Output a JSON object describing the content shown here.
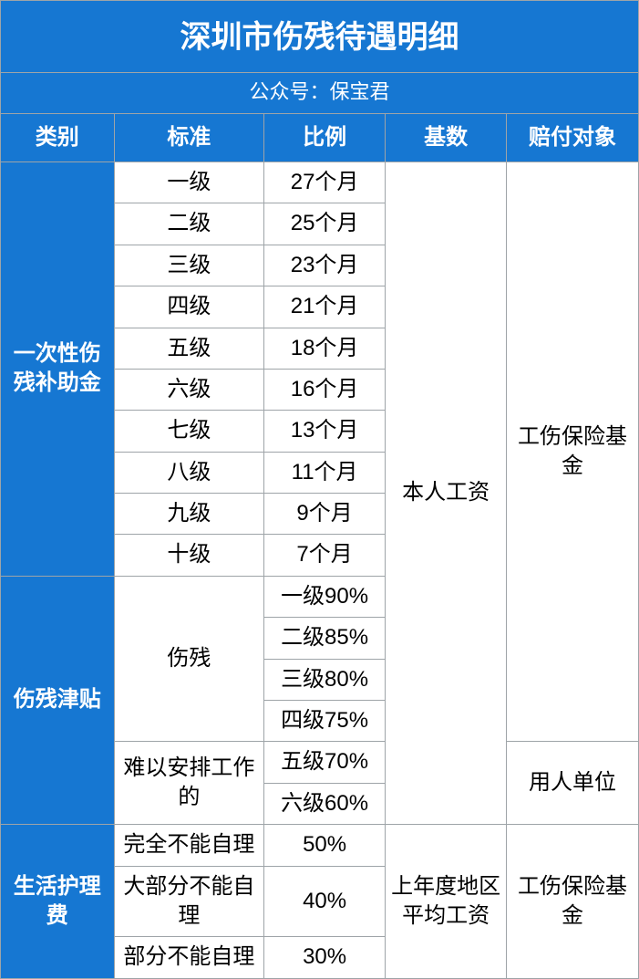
{
  "colors": {
    "header_bg": "#1677d2",
    "header_fg": "#ffffff",
    "cell_bg": "#ffffff",
    "cell_fg": "#000000",
    "border": "#9ea4a8"
  },
  "font": {
    "title_size_pt": 26,
    "subtitle_size_pt": 17,
    "header_size_pt": 18,
    "body_size_pt": 18
  },
  "title": "深圳市伤残待遇明细",
  "subtitle": "公众号：保宝君",
  "columns": [
    "类别",
    "标准",
    "比例",
    "基数",
    "赔付对象"
  ],
  "column_widths_pct": [
    17.8,
    23.5,
    19.0,
    19.0,
    20.7
  ],
  "sections": [
    {
      "category": "一次性伤残补助金",
      "base": "本人工资",
      "payer": "工伤保险基金",
      "rows": [
        {
          "standard": "一级",
          "ratio": "27个月"
        },
        {
          "standard": "二级",
          "ratio": "25个月"
        },
        {
          "standard": "三级",
          "ratio": "23个月"
        },
        {
          "standard": "四级",
          "ratio": "21个月"
        },
        {
          "standard": "五级",
          "ratio": "18个月"
        },
        {
          "standard": "六级",
          "ratio": "16个月"
        },
        {
          "standard": "七级",
          "ratio": "13个月"
        },
        {
          "standard": "八级",
          "ratio": "11个月"
        },
        {
          "standard": "九级",
          "ratio": "9个月"
        },
        {
          "standard": "十级",
          "ratio": "7个月"
        }
      ]
    },
    {
      "category": "伤残津贴",
      "groups": [
        {
          "standard": "伤残",
          "ratios": [
            "一级90%",
            "二级85%",
            "三级80%",
            "四级75%"
          ],
          "payer": "工伤保险基金"
        },
        {
          "standard": "难以安排工作的",
          "ratios": [
            "五级70%",
            "六级60%"
          ],
          "payer": "用人单位"
        }
      ]
    },
    {
      "category": "生活护理费",
      "base": "上年度地区平均工资",
      "payer": "工伤保险基金",
      "rows": [
        {
          "standard": "完全不能自理",
          "ratio": "50%"
        },
        {
          "standard": "大部分不能自理",
          "ratio": "40%"
        },
        {
          "standard": "部分不能自理",
          "ratio": "30%"
        }
      ]
    }
  ]
}
